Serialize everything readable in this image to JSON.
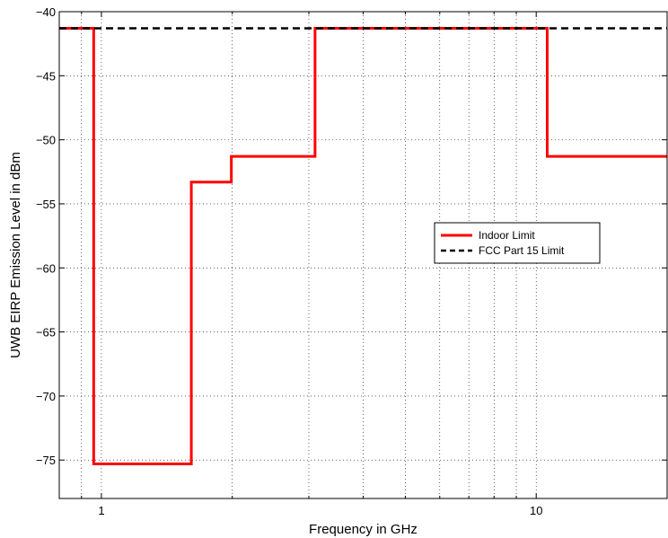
{
  "chart_data": {
    "type": "line",
    "xlabel": "Frequency in GHz",
    "ylabel": "UWB EIRP Emission Level in dBm",
    "xscale": "log",
    "xlim": [
      0.8,
      20
    ],
    "ylim": [
      -78,
      -40
    ],
    "x_ticks": [
      1,
      10
    ],
    "y_ticks": [
      -75,
      -70,
      -65,
      -60,
      -55,
      -50,
      -45,
      -40
    ],
    "y_tick_labels": [
      "−75",
      "−70",
      "−65",
      "−60",
      "−55",
      "−50",
      "−45",
      "−40"
    ],
    "grid": true,
    "legend_position": "center-right",
    "series": [
      {
        "name": "Indoor Limit",
        "color": "#ff0000",
        "style": "solid",
        "points": [
          [
            0.8,
            -41.3
          ],
          [
            0.96,
            -41.3
          ],
          [
            0.96,
            -75.3
          ],
          [
            1.61,
            -75.3
          ],
          [
            1.61,
            -53.3
          ],
          [
            1.99,
            -53.3
          ],
          [
            1.99,
            -51.3
          ],
          [
            3.1,
            -51.3
          ],
          [
            3.1,
            -41.3
          ],
          [
            10.6,
            -41.3
          ],
          [
            10.6,
            -51.3
          ],
          [
            20,
            -51.3
          ]
        ]
      },
      {
        "name": "FCC Part 15 Limit",
        "color": "#000000",
        "style": "dashed",
        "points": [
          [
            0.8,
            -41.3
          ],
          [
            20,
            -41.3
          ]
        ]
      }
    ]
  }
}
